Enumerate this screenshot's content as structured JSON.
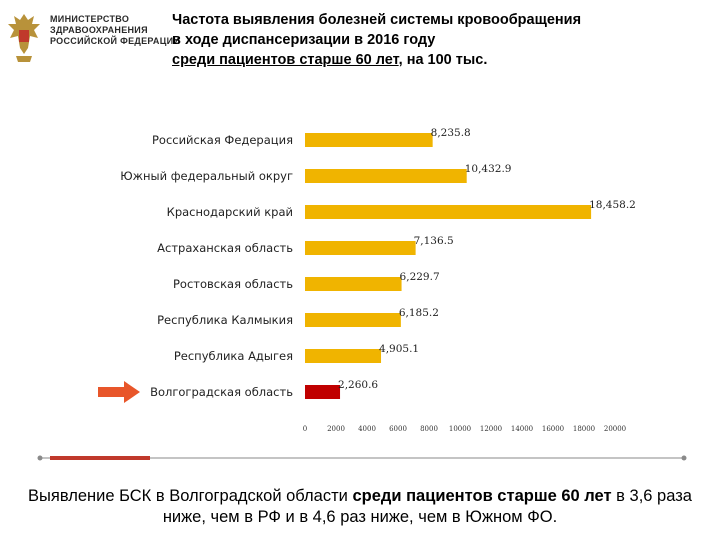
{
  "header": {
    "ministry_lines": [
      "МИНИСТЕРСТВО",
      "ЗДРАВООХРАНЕНИЯ",
      "РОССИЙСКОЙ ФЕДЕРАЦИИ"
    ],
    "title_line1": "Частота выявления болезней системы кровообращения",
    "title_line2": "в ходе диспансеризации в 2016 году",
    "title_line3_underlined": "среди пациентов старше 60 лет",
    "title_line3_rest": ",  на 100 тыс."
  },
  "chart_data": {
    "type": "bar",
    "orientation": "horizontal",
    "title": "",
    "xlabel": "",
    "ylabel": "",
    "categories": [
      "Российская Федерация",
      "Южный федеральный округ",
      "Краснодарский край",
      "Астраханская область",
      "Ростовская область",
      "Республика Калмыкия",
      "Республика Адыгея",
      "Волгоградская область"
    ],
    "values": [
      8235.8,
      10432.9,
      18458.2,
      7136.5,
      6229.7,
      6185.2,
      4905.1,
      2260.6
    ],
    "value_labels": [
      "8,235.8",
      "10,432.9",
      "18,458.2",
      "7,136.5",
      "6,229.7",
      "6,185.2",
      "4,905.1",
      "2,260.6"
    ],
    "xlim": [
      0,
      20000
    ],
    "xticks": [
      0,
      2000,
      4000,
      6000,
      8000,
      10000,
      12000,
      14000,
      16000,
      18000,
      20000
    ],
    "grid": false,
    "legend": "none",
    "colors": {
      "default": "#F0B400",
      "highlight": "#C00000"
    },
    "highlight_index": 7,
    "arrow_index": 7
  },
  "footer": {
    "text1": "Выявление БСК в Волгоградской области ",
    "bold": "среди пациентов старше 60 лет",
    "text2": "  в 3,6 раза ниже, чем в РФ и в 4,6 раз ниже, чем в Южном ФО."
  },
  "colors": {
    "arrow": "#E8562A",
    "divider": "#8a8a8a",
    "divider_accent": "#C0392B",
    "emblem": "#B8923A"
  }
}
